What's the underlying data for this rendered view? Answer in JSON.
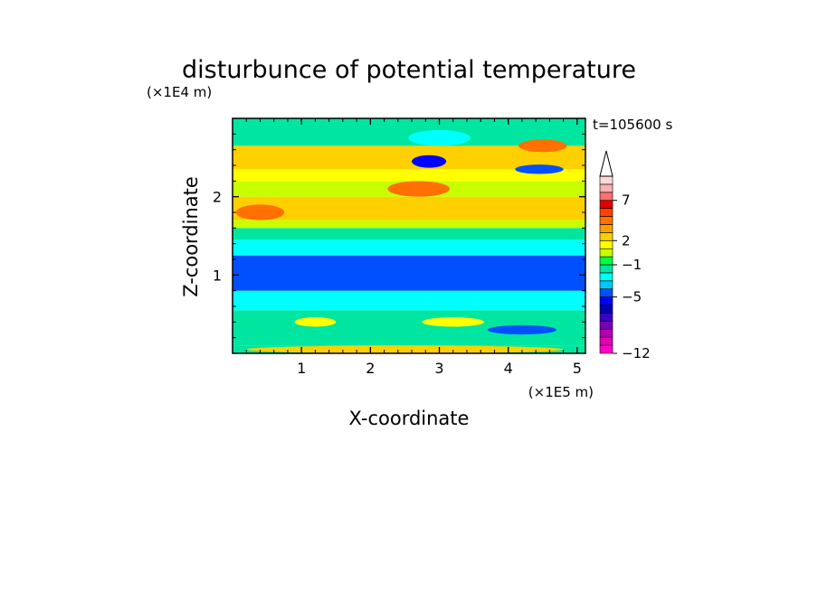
{
  "chart_data": {
    "type": "heatmap",
    "title": "disturbunce of potential temperature",
    "xlabel": "X-coordinate",
    "ylabel": "Z-coordinate",
    "x_unit_label": "(×1E5 m)",
    "y_unit_label": "(×1E4 m)",
    "time_label": "t=105600 s",
    "xlim": [
      0,
      5.12
    ],
    "ylim": [
      0,
      3.0
    ],
    "x_ticks": [
      1,
      2,
      3,
      4,
      5
    ],
    "y_ticks": [
      1,
      2
    ],
    "colorbar": {
      "levels": [
        -12,
        -11,
        -10,
        -9,
        -8,
        -7,
        -6,
        -5,
        -4,
        -3,
        -2,
        -1,
        0,
        1,
        2,
        3,
        4,
        5,
        6,
        7,
        8,
        9,
        10
      ],
      "labeled_ticks": [
        -12,
        -5,
        -1,
        2,
        7
      ],
      "extend_max": true,
      "colors": [
        "#ff00cc",
        "#e000b0",
        "#b000b0",
        "#7a00b0",
        "#3a00c8",
        "#0000b4",
        "#0000ff",
        "#0050ff",
        "#00c8ff",
        "#00ffff",
        "#00e6a0",
        "#00ff40",
        "#c8ff00",
        "#ffff00",
        "#ffd000",
        "#ffa000",
        "#ff7000",
        "#ff4000",
        "#e00000",
        "#ff7070",
        "#ffb0b0",
        "#ffd8d8"
      ]
    },
    "bands": [
      {
        "z_min": 0.0,
        "z_max": 0.1,
        "value": -2
      },
      {
        "z_min": 0.1,
        "z_max": 0.55,
        "value": -2
      },
      {
        "z_min": 0.55,
        "z_max": 0.8,
        "value": -3
      },
      {
        "z_min": 0.8,
        "z_max": 1.25,
        "value": -5
      },
      {
        "z_min": 1.25,
        "z_max": 1.45,
        "value": -3
      },
      {
        "z_min": 1.45,
        "z_max": 1.6,
        "value": -2
      },
      {
        "z_min": 1.6,
        "z_max": 1.7,
        "value": 0
      },
      {
        "z_min": 1.7,
        "z_max": 2.0,
        "value": 2
      },
      {
        "z_min": 2.0,
        "z_max": 2.2,
        "value": 0
      },
      {
        "z_min": 2.2,
        "z_max": 2.35,
        "value": 1
      },
      {
        "z_min": 2.35,
        "z_max": 2.65,
        "value": 2
      },
      {
        "z_min": 2.65,
        "z_max": 3.0,
        "value": -2
      }
    ],
    "features": [
      {
        "x": 0.4,
        "z": 1.8,
        "rx": 0.35,
        "rz": 0.1,
        "value": 4
      },
      {
        "x": 2.7,
        "z": 2.1,
        "rx": 0.45,
        "rz": 0.1,
        "value": 4
      },
      {
        "x": 2.85,
        "z": 2.45,
        "rx": 0.25,
        "rz": 0.08,
        "value": -6
      },
      {
        "x": 4.5,
        "z": 2.65,
        "rx": 0.35,
        "rz": 0.08,
        "value": 4
      },
      {
        "x": 4.45,
        "z": 2.35,
        "rx": 0.35,
        "rz": 0.06,
        "value": -5
      },
      {
        "x": 1.5,
        "z": 2.8,
        "rx": 0.9,
        "rz": 0.12,
        "value": -2
      },
      {
        "x": 3.0,
        "z": 2.75,
        "rx": 0.45,
        "rz": 0.1,
        "value": -3
      },
      {
        "x": 1.2,
        "z": 0.4,
        "rx": 0.3,
        "rz": 0.06,
        "value": 1
      },
      {
        "x": 3.2,
        "z": 0.4,
        "rx": 0.45,
        "rz": 0.06,
        "value": 1
      },
      {
        "x": 4.2,
        "z": 0.3,
        "rx": 0.5,
        "rz": 0.06,
        "value": -5
      },
      {
        "x": 2.5,
        "z": 0.05,
        "rx": 2.3,
        "rz": 0.05,
        "value": 2
      }
    ]
  }
}
